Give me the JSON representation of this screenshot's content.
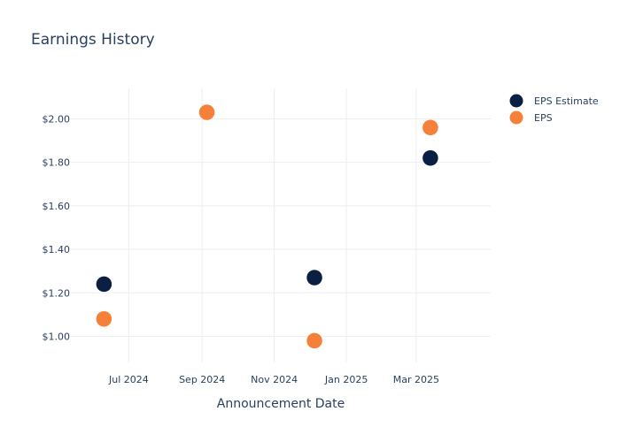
{
  "chart_data": {
    "type": "scatter",
    "title": "Earnings History",
    "xlabel": "Announcement Date",
    "ylabel": "",
    "x_axis_type": "date",
    "x_range": [
      "2024-05-13",
      "2025-05-03"
    ],
    "x_ticks": [
      {
        "date": "2024-07-01",
        "label": "Jul 2024"
      },
      {
        "date": "2024-09-01",
        "label": "Sep 2024"
      },
      {
        "date": "2024-11-01",
        "label": "Nov 2024"
      },
      {
        "date": "2025-01-01",
        "label": "Jan 2025"
      },
      {
        "date": "2025-03-01",
        "label": "Mar 2025"
      }
    ],
    "ylim": [
      0.88,
      2.14
    ],
    "y_ticks": [
      1.0,
      1.2,
      1.4,
      1.6,
      1.8,
      2.0
    ],
    "y_tick_labels": [
      "$1.00",
      "$1.20",
      "$1.40",
      "$1.60",
      "$1.80",
      "$2.00"
    ],
    "grid": true,
    "legend_position": "top-right",
    "series": [
      {
        "name": "EPS Estimate",
        "color": "#0b1f42",
        "points": [
          {
            "x": "2024-06-10",
            "y": 1.24
          },
          {
            "x": "2024-09-05",
            "y": 2.03
          },
          {
            "x": "2024-12-05",
            "y": 1.27
          },
          {
            "x": "2025-03-13",
            "y": 1.82
          }
        ]
      },
      {
        "name": "EPS",
        "color": "#f5803a",
        "points": [
          {
            "x": "2024-06-10",
            "y": 1.08
          },
          {
            "x": "2024-09-05",
            "y": 2.03
          },
          {
            "x": "2024-12-05",
            "y": 0.98
          },
          {
            "x": "2025-03-13",
            "y": 1.96
          }
        ]
      }
    ]
  }
}
